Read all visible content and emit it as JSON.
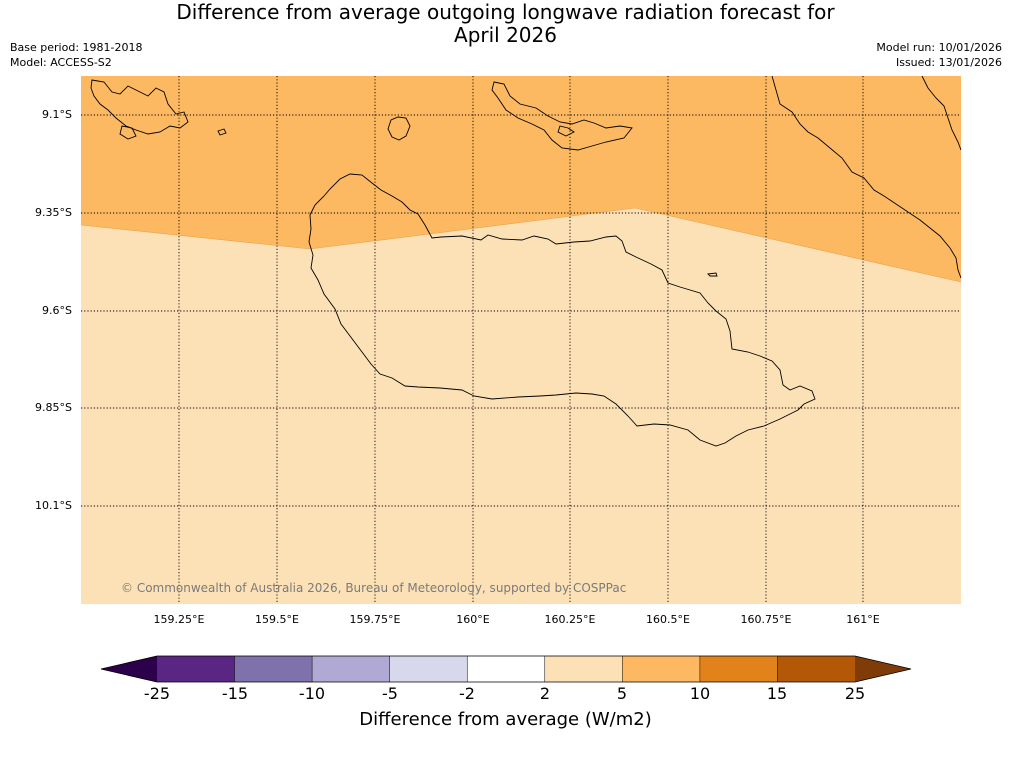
{
  "title_line1": "Difference from average outgoing longwave radiation forecast for",
  "title_line2": "April 2026",
  "meta_left": {
    "base_period": "Base period: 1981-2018",
    "model": "Model: ACCESS-S2"
  },
  "meta_right": {
    "model_run": "Model run: 10/01/2026",
    "issued": "Issued: 13/01/2026"
  },
  "map": {
    "lat_labels": [
      "9.1°S",
      "9.35°S",
      "9.6°S",
      "9.85°S",
      "10.1°S"
    ],
    "lon_labels": [
      "159.25°E",
      "159.5°E",
      "159.75°E",
      "160°E",
      "160.25°E",
      "160.5°E",
      "160.75°E",
      "161°E"
    ],
    "copyright": "© Commonwealth of Australia 2026, Bureau of Meteorology, supported by COSPPac",
    "field_colors": {
      "2_to_5": "#fde1b6",
      "5_to_10": "#fcb962"
    }
  },
  "colorbar": {
    "title": "Difference from average (W/m2)",
    "tick_labels": [
      "-25",
      "-15",
      "-10",
      "-5",
      "-2",
      "2",
      "5",
      "10",
      "15",
      "25"
    ],
    "colors": [
      "#5a2683",
      "#7f71ab",
      "#b0a9d3",
      "#d8d8ec",
      "#ffffff",
      "#fde1b6",
      "#fcb962",
      "#e1821a",
      "#b35806"
    ],
    "under_color": "#2d004b",
    "over_color": "#7f3b08"
  }
}
